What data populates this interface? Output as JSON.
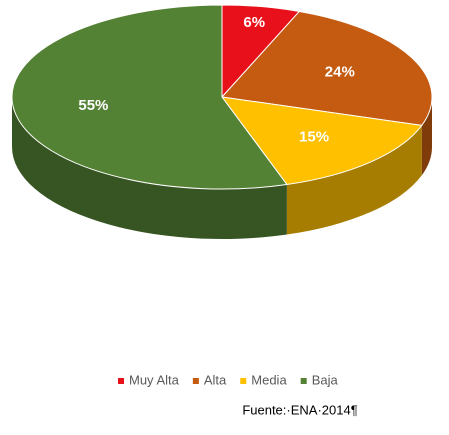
{
  "chart_data": {
    "type": "pie",
    "three_d": true,
    "categories": [
      "Muy Alta",
      "Alta",
      "Media",
      "Baja"
    ],
    "values": [
      6,
      24,
      15,
      55
    ],
    "value_labels": [
      "6%",
      "24%",
      "15%",
      "55%"
    ],
    "colors": [
      "#e8101a",
      "#c55a11",
      "#ffc000",
      "#548235"
    ],
    "legend": "bottom",
    "source": "Fuente:·ENA·2014¶"
  }
}
